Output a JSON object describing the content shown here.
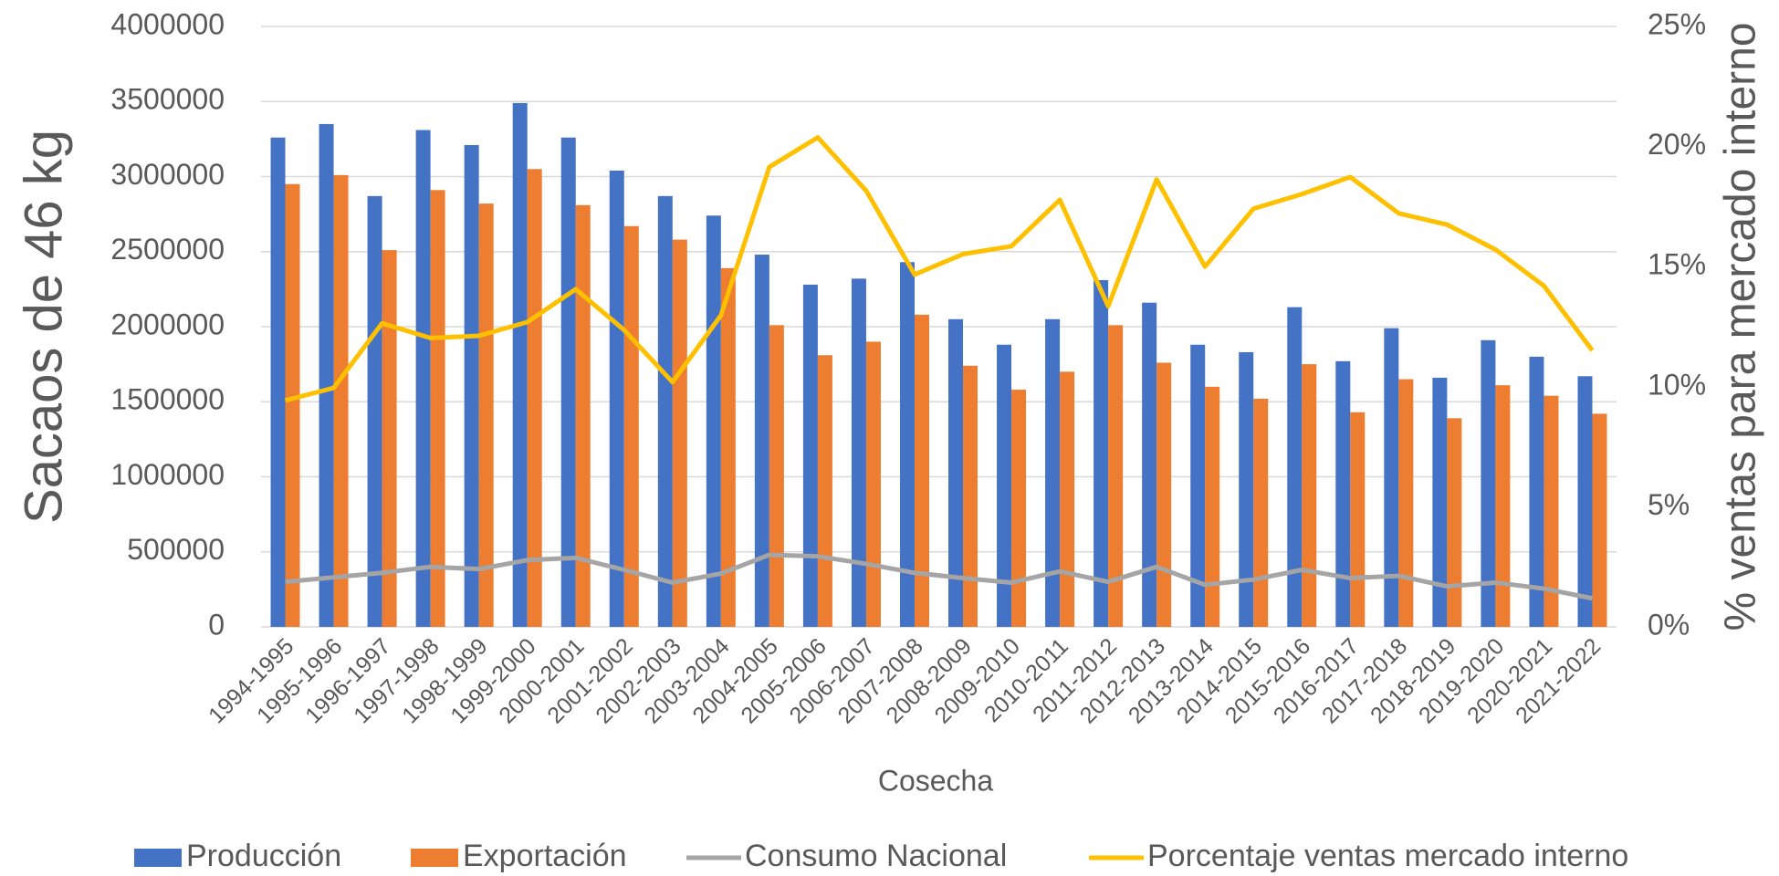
{
  "chart_data": {
    "type": "bar-line",
    "y_label": "Sacaos de 46 kg",
    "y2_label": "% ventas para mercado interno",
    "x_label": "Cosecha",
    "categories": [
      "1994-1995",
      "1995-1996",
      "1996-1997",
      "1997-1998",
      "1998-1999",
      "1999-2000",
      "2000-2001",
      "2001-2002",
      "2002-2003",
      "2003-2004",
      "2004-2005",
      "2005-2006",
      "2006-2007",
      "2007-2008",
      "2008-2009",
      "2009-2010",
      "2010-2011",
      "2011-2012",
      "2012-2013",
      "2013-2014",
      "2014-2015",
      "2015-2016",
      "2016-2017",
      "2017-2018",
      "2018-2019",
      "2019-2020",
      "2020-2021",
      "2021-2022"
    ],
    "series": [
      {
        "name": "Producción",
        "type": "bar",
        "color": "#4472c4",
        "values": [
          3260000,
          3350000,
          2870000,
          3310000,
          3210000,
          3490000,
          3260000,
          3040000,
          2870000,
          2740000,
          2480000,
          2280000,
          2320000,
          2430000,
          2050000,
          1880000,
          2050000,
          2310000,
          2160000,
          1880000,
          1830000,
          2130000,
          1770000,
          1990000,
          1660000,
          1910000,
          1800000,
          1670000
        ]
      },
      {
        "name": "Exportación",
        "type": "bar",
        "color": "#ed7d31",
        "values": [
          2950000,
          3010000,
          2510000,
          2910000,
          2820000,
          3050000,
          2810000,
          2670000,
          2580000,
          2390000,
          2010000,
          1810000,
          1900000,
          2080000,
          1740000,
          1580000,
          1700000,
          2010000,
          1760000,
          1600000,
          1520000,
          1750000,
          1430000,
          1650000,
          1390000,
          1610000,
          1540000,
          1420000
        ]
      },
      {
        "name": "Consumo Nacional",
        "type": "line",
        "color": "#a5a5a5",
        "values": [
          300000,
          330000,
          360000,
          400000,
          385000,
          445000,
          460000,
          380000,
          295000,
          355000,
          480000,
          470000,
          420000,
          360000,
          325000,
          295000,
          370000,
          300000,
          400000,
          280000,
          315000,
          380000,
          325000,
          340000,
          270000,
          295000,
          255000,
          190000
        ]
      },
      {
        "name": "Porcentaje ventas mercado interno",
        "type": "line",
        "axis": "y2",
        "color": "#ffc000",
        "values": [
          9.43,
          9.95,
          12.64,
          12.03,
          12.12,
          12.69,
          14.06,
          12.36,
          10.19,
          12.97,
          19.15,
          20.38,
          18.16,
          14.67,
          15.52,
          15.85,
          17.78,
          13.35,
          18.63,
          15.0,
          17.41,
          18.02,
          18.73,
          17.22,
          16.75,
          15.71,
          14.2,
          11.51
        ]
      }
    ],
    "ylim": [
      0,
      4000000
    ],
    "yticks": [
      0,
      500000,
      1000000,
      1500000,
      2000000,
      2500000,
      3000000,
      3500000,
      4000000
    ],
    "y2lim": [
      0,
      25
    ],
    "y2ticks": [
      {
        "value": 0,
        "label": "0%"
      },
      {
        "value": 5,
        "label": "5%"
      },
      {
        "value": 10,
        "label": "10%"
      },
      {
        "value": 15,
        "label": "15%"
      },
      {
        "value": 20,
        "label": "20%"
      },
      {
        "value": 25,
        "label": "25%"
      }
    ],
    "grid": true,
    "legend": "bottom"
  }
}
